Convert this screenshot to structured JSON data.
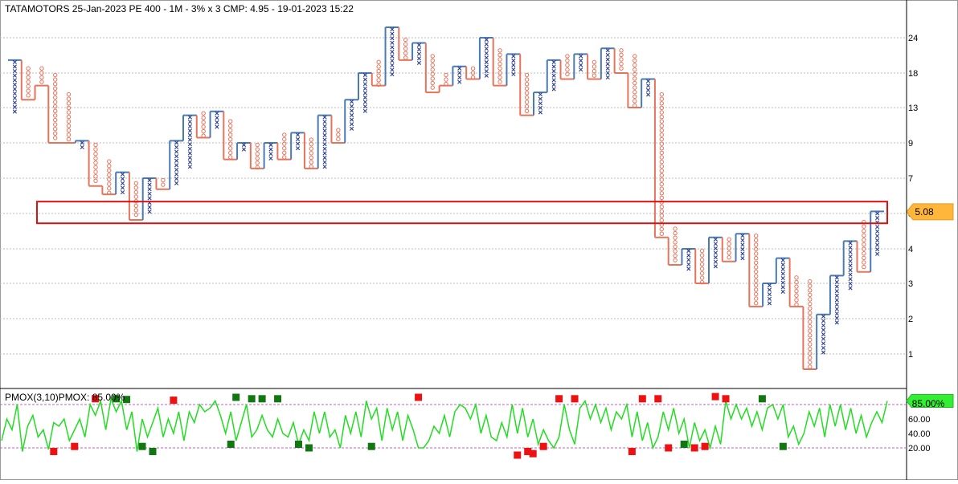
{
  "chart_data": [
    {
      "type": "point-and-figure",
      "title": "TATAMOTORS 25-Jan-2023 PE 400 - 1M - 3% x 3 CMP: 4.95 - 19-01-2023 15:22",
      "yticks": [
        1,
        2,
        3,
        4,
        5,
        7,
        9,
        13,
        18,
        24
      ],
      "ylim": [
        0.7,
        28
      ],
      "scale": "log",
      "grid": true,
      "last_price_label": "5.08",
      "columns_count": 65,
      "columns": [
        {
          "kind": "X",
          "low": 12,
          "high": 20
        },
        {
          "kind": "O",
          "low": 14,
          "high": 19
        },
        {
          "kind": "O",
          "low": 16,
          "high": 19
        },
        {
          "kind": "O",
          "low": 9,
          "high": 18
        },
        {
          "kind": "O",
          "low": 9,
          "high": 15
        },
        {
          "kind": "X",
          "low": 8.5,
          "high": 9.2
        },
        {
          "kind": "O",
          "low": 6.5,
          "high": 9
        },
        {
          "kind": "O",
          "low": 6,
          "high": 8
        },
        {
          "kind": "X",
          "low": 6,
          "high": 7.3
        },
        {
          "kind": "O",
          "low": 4.8,
          "high": 6.8
        },
        {
          "kind": "X",
          "low": 5,
          "high": 7
        },
        {
          "kind": "O",
          "low": 6.3,
          "high": 7
        },
        {
          "kind": "X",
          "low": 6.5,
          "high": 9.2
        },
        {
          "kind": "X",
          "low": 7.5,
          "high": 12
        },
        {
          "kind": "O",
          "low": 9.5,
          "high": 12.5
        },
        {
          "kind": "X",
          "low": 10.5,
          "high": 12.5
        },
        {
          "kind": "O",
          "low": 8,
          "high": 11.5
        },
        {
          "kind": "X",
          "low": 8.5,
          "high": 9
        },
        {
          "kind": "O",
          "low": 7.5,
          "high": 9
        },
        {
          "kind": "X",
          "low": 8,
          "high": 9
        },
        {
          "kind": "O",
          "low": 8,
          "high": 10
        },
        {
          "kind": "X",
          "low": 8.5,
          "high": 10
        },
        {
          "kind": "O",
          "low": 7.5,
          "high": 9.5
        },
        {
          "kind": "X",
          "low": 7.5,
          "high": 12
        },
        {
          "kind": "O",
          "low": 9,
          "high": 10.5
        },
        {
          "kind": "X",
          "low": 10,
          "high": 14
        },
        {
          "kind": "X",
          "low": 12,
          "high": 18
        },
        {
          "kind": "O",
          "low": 16,
          "high": 20
        },
        {
          "kind": "X",
          "low": 17,
          "high": 26
        },
        {
          "kind": "O",
          "low": 20,
          "high": 24
        },
        {
          "kind": "X",
          "low": 19,
          "high": 23
        },
        {
          "kind": "O",
          "low": 15,
          "high": 21
        },
        {
          "kind": "O",
          "low": 16,
          "high": 18
        },
        {
          "kind": "X",
          "low": 16,
          "high": 19
        },
        {
          "kind": "O",
          "low": 17,
          "high": 19
        },
        {
          "kind": "X",
          "low": 17,
          "high": 24
        },
        {
          "kind": "O",
          "low": 16,
          "high": 22
        },
        {
          "kind": "X",
          "low": 17,
          "high": 21
        },
        {
          "kind": "O",
          "low": 12,
          "high": 18
        },
        {
          "kind": "X",
          "low": 12,
          "high": 15
        },
        {
          "kind": "X",
          "low": 15,
          "high": 20
        },
        {
          "kind": "O",
          "low": 17,
          "high": 21
        },
        {
          "kind": "X",
          "low": 18,
          "high": 21
        },
        {
          "kind": "O",
          "low": 17,
          "high": 20
        },
        {
          "kind": "X",
          "low": 17,
          "high": 22
        },
        {
          "kind": "O",
          "low": 18,
          "high": 22
        },
        {
          "kind": "O",
          "low": 13,
          "high": 21
        },
        {
          "kind": "X",
          "low": 14,
          "high": 17
        },
        {
          "kind": "O",
          "low": 4.3,
          "high": 15
        },
        {
          "kind": "O",
          "low": 3.5,
          "high": 4.6
        },
        {
          "kind": "X",
          "low": 3.3,
          "high": 4
        },
        {
          "kind": "O",
          "low": 3,
          "high": 4
        },
        {
          "kind": "X",
          "low": 3.4,
          "high": 4.3
        },
        {
          "kind": "O",
          "low": 3.6,
          "high": 4.3
        },
        {
          "kind": "X",
          "low": 3.6,
          "high": 4.4
        },
        {
          "kind": "O",
          "low": 2.3,
          "high": 4.4
        },
        {
          "kind": "X",
          "low": 2.3,
          "high": 3
        },
        {
          "kind": "X",
          "low": 2.6,
          "high": 3.7
        },
        {
          "kind": "O",
          "low": 2.3,
          "high": 3.2
        },
        {
          "kind": "O",
          "low": 0.7,
          "high": 3.1
        },
        {
          "kind": "X",
          "low": 1,
          "high": 2.1
        },
        {
          "kind": "X",
          "low": 1.7,
          "high": 3.2
        },
        {
          "kind": "X",
          "low": 2.8,
          "high": 4.2
        },
        {
          "kind": "O",
          "low": 3.3,
          "high": 4.8
        },
        {
          "kind": "X",
          "low": 3.7,
          "high": 5.1
        }
      ],
      "level_box": {
        "low": 4.7,
        "high": 5.6
      },
      "colors": {
        "x": "#2b3f8f",
        "o": "#e8735b",
        "step": "#4a7ab3",
        "box": "#dd1111",
        "grid": "#bdbdbd",
        "tag": "#ffb63a"
      }
    },
    {
      "type": "line",
      "title": "PMOX(3,10)PMOX: 85.00%",
      "yticks": [
        20,
        40,
        60,
        85
      ],
      "ytick_labels": [
        "20.00",
        "40.00",
        "60.00"
      ],
      "ylim": [
        0,
        100
      ],
      "last_value_label": "85.00%",
      "levels": [
        80,
        20
      ],
      "series": [
        {
          "values": [
            30,
            60,
            45,
            80,
            15,
            50,
            65,
            35,
            45,
            18,
            55,
            50,
            60,
            30,
            45,
            60,
            35,
            80,
            65,
            85,
            45,
            88,
            70,
            85,
            45,
            70,
            15,
            60,
            35,
            55,
            75,
            35,
            60,
            40,
            70,
            30,
            70,
            55,
            80,
            70,
            75,
            85,
            65,
            40,
            70,
            30,
            55,
            80,
            35,
            45,
            65,
            45,
            35,
            60,
            40,
            35,
            55,
            25,
            45,
            30,
            70,
            40,
            70,
            35,
            45,
            20,
            65,
            40,
            70,
            35,
            85,
            60,
            75,
            30,
            75,
            45,
            70,
            30,
            65,
            45,
            20,
            20,
            30,
            50,
            40,
            65,
            35,
            70,
            80,
            75,
            60,
            80,
            40,
            65,
            35,
            30,
            55,
            35,
            80,
            40,
            75,
            35,
            60,
            25,
            45,
            30,
            20,
            35,
            80,
            45,
            25,
            75,
            85,
            60,
            80,
            55,
            75,
            45,
            70,
            60,
            80,
            35,
            70,
            30,
            55,
            20,
            35,
            70,
            45,
            75,
            40,
            60,
            20,
            55,
            30,
            45,
            20,
            50,
            25,
            85,
            60,
            80,
            60,
            75,
            50,
            70,
            45,
            75,
            80,
            60,
            80,
            35,
            50,
            25,
            40,
            70,
            50,
            75,
            35,
            80,
            50,
            80,
            45,
            75,
            40,
            65,
            35,
            55,
            70,
            55,
            85
          ]
        }
      ],
      "markers": [
        {
          "index": 10,
          "value": 15,
          "kind": "red"
        },
        {
          "index": 14,
          "value": 22,
          "kind": "red"
        },
        {
          "index": 18,
          "value": 88,
          "kind": "red"
        },
        {
          "index": 22,
          "value": 88,
          "kind": "green"
        },
        {
          "index": 24,
          "value": 87,
          "kind": "green"
        },
        {
          "index": 27,
          "value": 22,
          "kind": "green"
        },
        {
          "index": 29,
          "value": 15,
          "kind": "green"
        },
        {
          "index": 33,
          "value": 86,
          "kind": "red"
        },
        {
          "index": 44,
          "value": 25,
          "kind": "green"
        },
        {
          "index": 45,
          "value": 90,
          "kind": "green"
        },
        {
          "index": 48,
          "value": 88,
          "kind": "green"
        },
        {
          "index": 50,
          "value": 88,
          "kind": "green"
        },
        {
          "index": 53,
          "value": 88,
          "kind": "green"
        },
        {
          "index": 57,
          "value": 25,
          "kind": "green"
        },
        {
          "index": 59,
          "value": 20,
          "kind": "green"
        },
        {
          "index": 71,
          "value": 22,
          "kind": "green"
        },
        {
          "index": 80,
          "value": 90,
          "kind": "red"
        },
        {
          "index": 99,
          "value": 10,
          "kind": "red"
        },
        {
          "index": 101,
          "value": 15,
          "kind": "red"
        },
        {
          "index": 102,
          "value": 12,
          "kind": "red"
        },
        {
          "index": 104,
          "value": 22,
          "kind": "red"
        },
        {
          "index": 107,
          "value": 88,
          "kind": "red"
        },
        {
          "index": 110,
          "value": 88,
          "kind": "red"
        },
        {
          "index": 121,
          "value": 15,
          "kind": "red"
        },
        {
          "index": 123,
          "value": 88,
          "kind": "red"
        },
        {
          "index": 126,
          "value": 88,
          "kind": "red"
        },
        {
          "index": 128,
          "value": 20,
          "kind": "red"
        },
        {
          "index": 131,
          "value": 25,
          "kind": "green"
        },
        {
          "index": 133,
          "value": 20,
          "kind": "red"
        },
        {
          "index": 135,
          "value": 22,
          "kind": "red"
        },
        {
          "index": 137,
          "value": 91,
          "kind": "red"
        },
        {
          "index": 139,
          "value": 88,
          "kind": "red"
        },
        {
          "index": 146,
          "value": 88,
          "kind": "green"
        },
        {
          "index": 150,
          "value": 22,
          "kind": "green"
        }
      ],
      "colors": {
        "line": "#22dd22",
        "level": "#c060c0",
        "red": "#ee1111",
        "green": "#117711",
        "tag": "#33ee33"
      }
    }
  ]
}
